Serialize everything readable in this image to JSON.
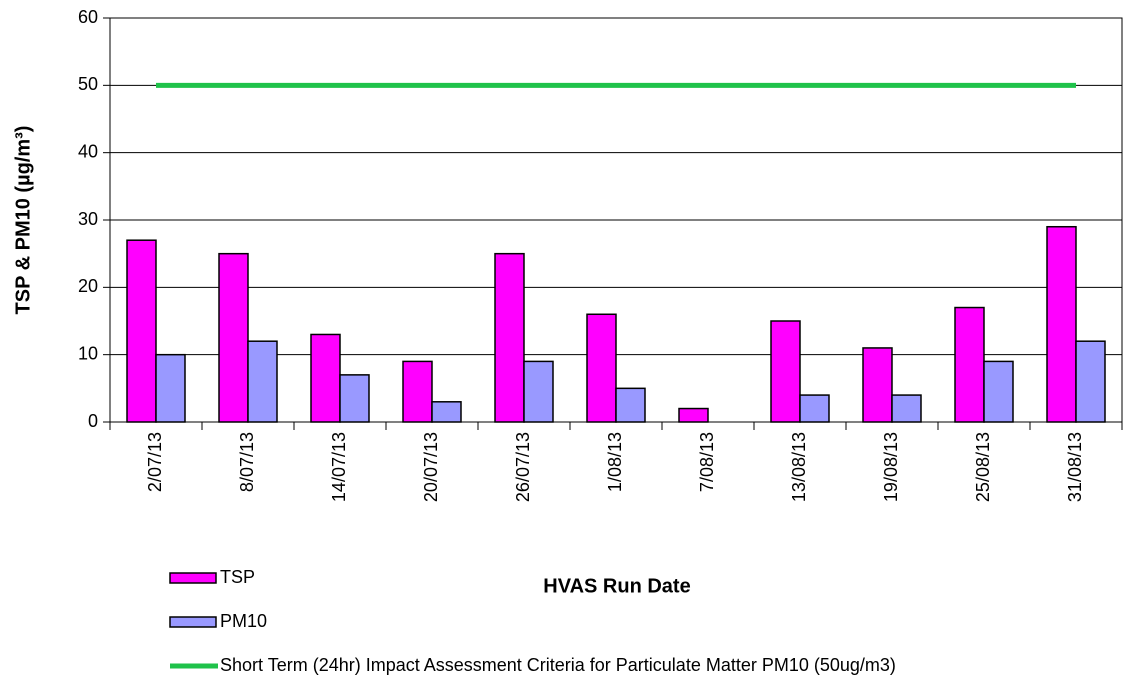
{
  "chart_data": {
    "type": "bar",
    "x_label": "HVAS Run Date",
    "y_label": "TSP & PM10 (µg/m³)",
    "categories": [
      "2/07/13",
      "8/07/13",
      "14/07/13",
      "20/07/13",
      "26/07/13",
      "1/08/13",
      "7/08/13",
      "13/08/13",
      "19/08/13",
      "25/08/13",
      "31/08/13"
    ],
    "series": [
      {
        "name": "TSP",
        "type": "bar",
        "color": "#ff00ff",
        "values": [
          27,
          25,
          13,
          9,
          25,
          16,
          2,
          15,
          11,
          17,
          29
        ]
      },
      {
        "name": "PM10",
        "type": "bar",
        "color": "#9999ff",
        "values": [
          10,
          12,
          7,
          3,
          9,
          5,
          null,
          4,
          4,
          9,
          12
        ]
      },
      {
        "name": "Short Term (24hr) Impact Assessment Criteria for Particulate Matter PM10 (50ug/m3)",
        "type": "line",
        "color": "#1fc24a",
        "values": [
          50,
          50,
          50,
          50,
          50,
          50,
          50,
          50,
          50,
          50,
          50
        ]
      }
    ],
    "ylim": [
      0,
      60
    ],
    "yticks": [
      0,
      10,
      20,
      30,
      40,
      50,
      60
    ],
    "grid": true,
    "legend": "bottom"
  }
}
